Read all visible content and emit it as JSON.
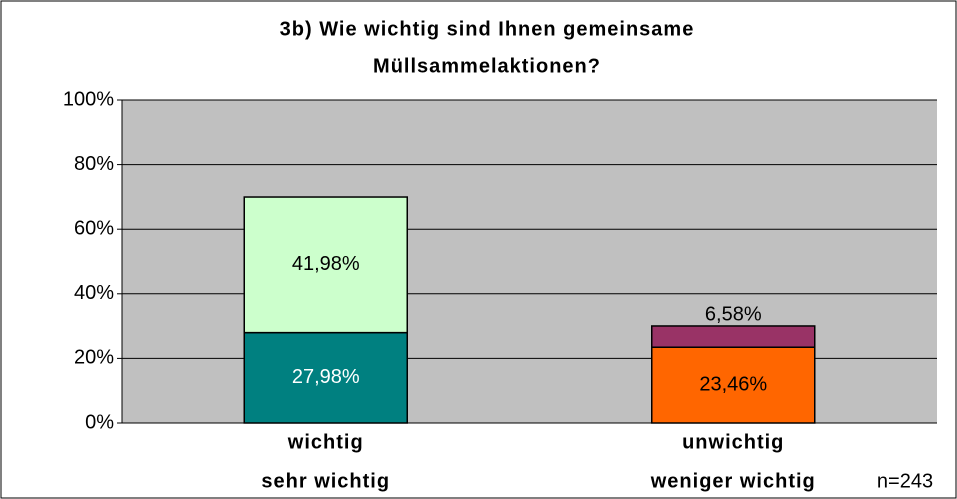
{
  "chart_data": {
    "type": "stacked_bar",
    "title": [
      "3b) Wie wichtig sind Ihnen gemeinsame",
      "Müllsammelaktionen?"
    ],
    "categories": [
      [
        "wichtig",
        "sehr wichtig"
      ],
      [
        "unwichtig",
        "weniger wichtig"
      ]
    ],
    "series": [
      {
        "colors": [
          "#008080",
          "#FF6600"
        ],
        "label_colors": [
          "#ffffff",
          "#000000"
        ],
        "values": [
          27.98,
          23.46
        ],
        "value_labels": [
          "27,98%",
          "23,46%"
        ]
      },
      {
        "colors": [
          "#CCFFCC",
          "#993366"
        ],
        "label_colors": [
          "#000000",
          "#000000"
        ],
        "values": [
          41.98,
          6.58
        ],
        "value_labels": [
          "41,98%",
          "6,58%"
        ]
      }
    ],
    "ylim": [
      0,
      100
    ],
    "yticks": [
      {
        "value": 0,
        "label": "0%"
      },
      {
        "value": 20,
        "label": "20%"
      },
      {
        "value": 40,
        "label": "40%"
      },
      {
        "value": 60,
        "label": "60%"
      },
      {
        "value": 80,
        "label": "80%"
      },
      {
        "value": 100,
        "label": "100%"
      }
    ],
    "grid": true,
    "plot_background": "#C0C0C0",
    "annotation": "n=243"
  }
}
